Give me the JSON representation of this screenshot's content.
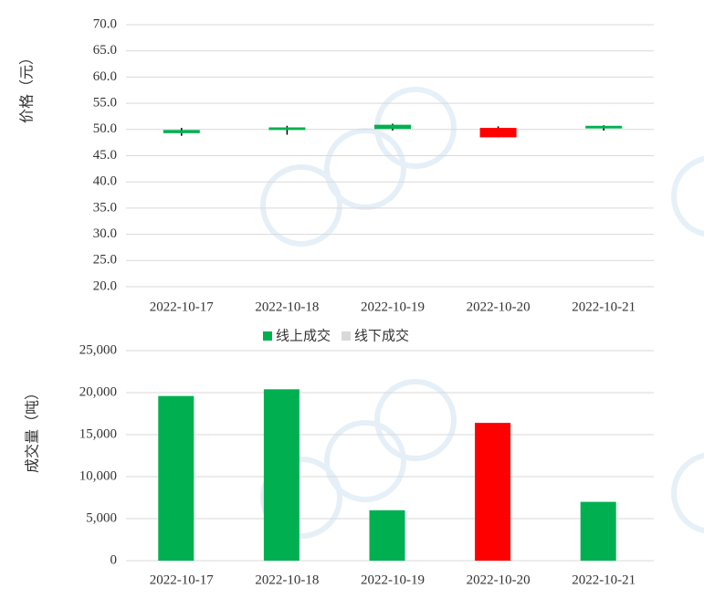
{
  "chart_data": [
    {
      "type": "candlestick",
      "y_label": "价格（元）",
      "categories": [
        "2022-10-17",
        "2022-10-18",
        "2022-10-19",
        "2022-10-20",
        "2022-10-21"
      ],
      "open": [
        49.9,
        50.4,
        50.9,
        48.5,
        50.7
      ],
      "high": [
        50.3,
        50.7,
        51.1,
        50.6,
        50.8
      ],
      "low": [
        48.8,
        49.0,
        49.8,
        48.5,
        49.8
      ],
      "close": [
        49.3,
        49.9,
        50.1,
        50.3,
        50.2
      ],
      "up_color": "#ff0000",
      "down_color": "#00b050",
      "ylim": [
        20,
        70
      ],
      "yticks": [
        {
          "value": 20,
          "label": "20.0"
        },
        {
          "value": 25,
          "label": "25.0"
        },
        {
          "value": 30,
          "label": "30.0"
        },
        {
          "value": 35,
          "label": "35.0"
        },
        {
          "value": 40,
          "label": "40.0"
        },
        {
          "value": 45,
          "label": "45.0"
        },
        {
          "value": 50,
          "label": "50.0"
        },
        {
          "value": 55,
          "label": "55.0"
        },
        {
          "value": 60,
          "label": "60.0"
        },
        {
          "value": 65,
          "label": "65.0"
        },
        {
          "value": 70,
          "label": "70.0"
        }
      ],
      "grid": true
    },
    {
      "type": "bar",
      "y_label": "成交量（吨）",
      "categories": [
        "2022-10-17",
        "2022-10-18",
        "2022-10-19",
        "2022-10-20",
        "2022-10-21"
      ],
      "series": [
        {
          "name": "线上成交",
          "color": "#00b050",
          "values": [
            19600,
            20400,
            6000,
            16400,
            7000
          ],
          "colors": [
            "#00b050",
            "#00b050",
            "#00b050",
            "#ff0000",
            "#00b050"
          ]
        },
        {
          "name": "线下成交",
          "color": "#d9d9d9"
        }
      ],
      "ylim": [
        0,
        25000
      ],
      "yticks": [
        0,
        {
          "value": 5000,
          "label": "5,000"
        },
        {
          "value": 10000,
          "label": "10,000"
        },
        {
          "value": 15000,
          "label": "15,000"
        },
        {
          "value": 20000,
          "label": "20,000"
        },
        {
          "value": 25000,
          "label": "25,000"
        }
      ],
      "grid": true,
      "legend": "top"
    }
  ]
}
